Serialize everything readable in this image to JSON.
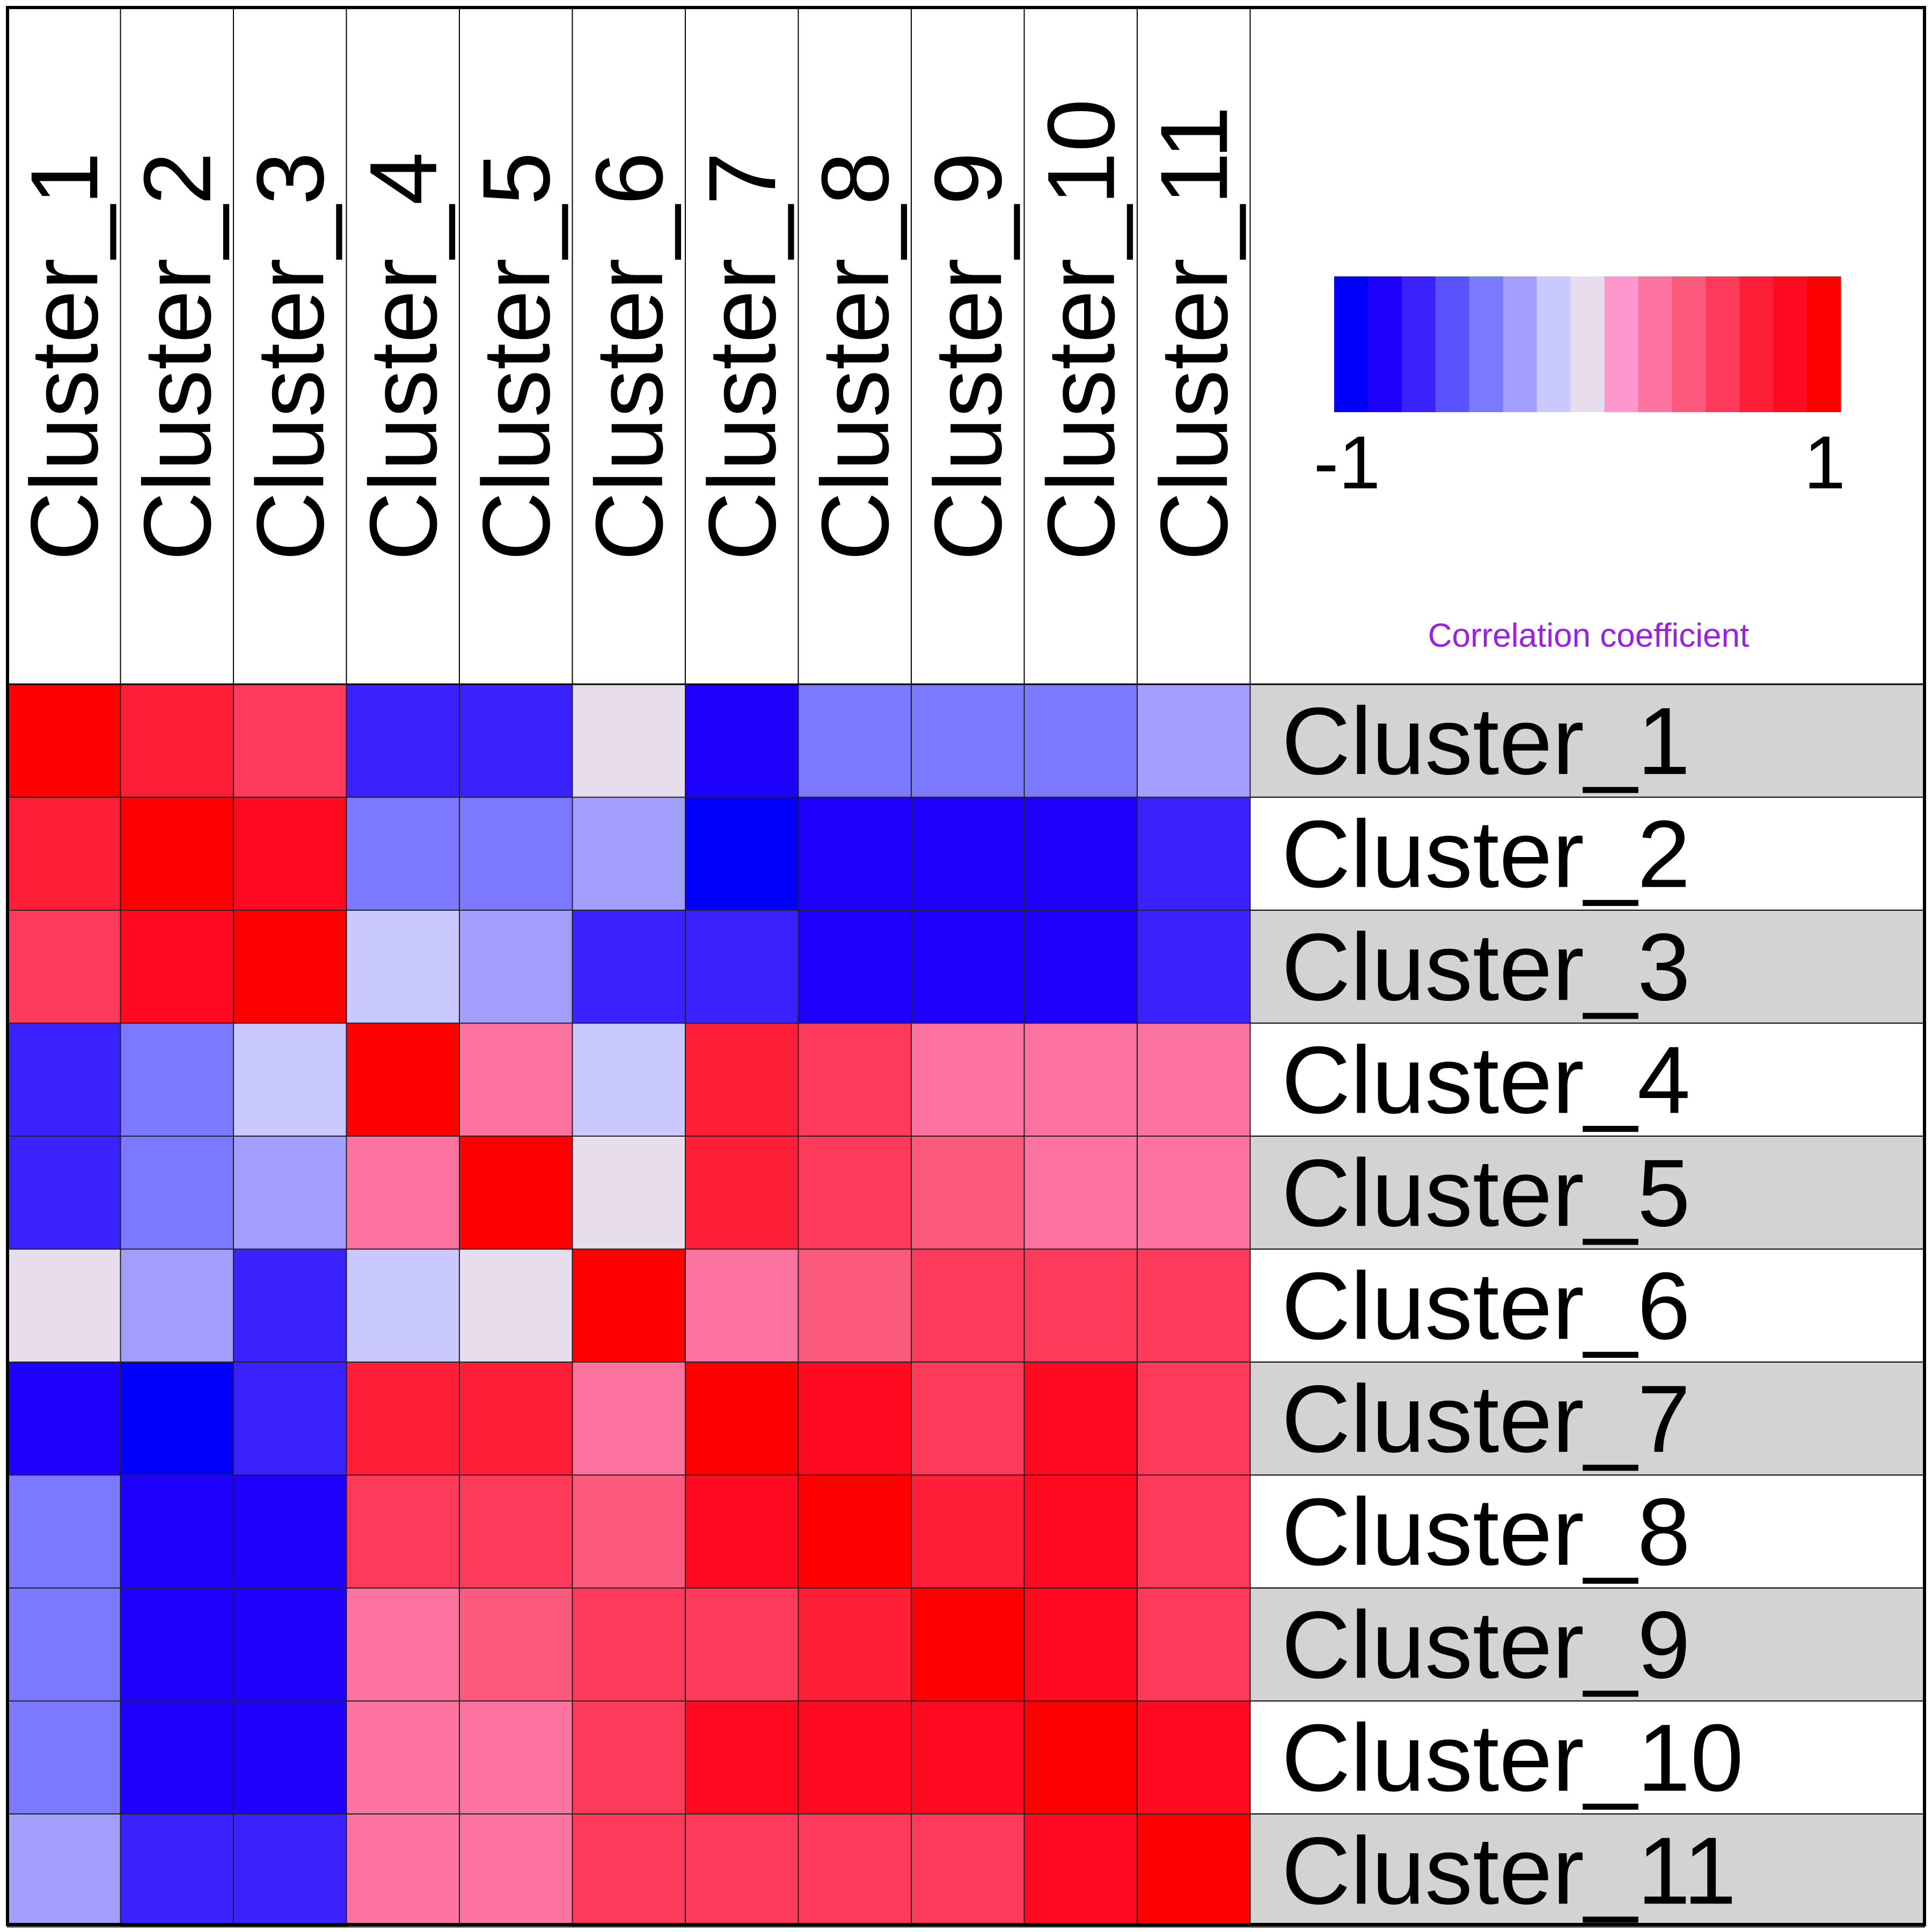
{
  "chart_data": {
    "type": "heatmap",
    "rows": [
      "Cluster_1",
      "Cluster_2",
      "Cluster_3",
      "Cluster_4",
      "Cluster_5",
      "Cluster_6",
      "Cluster_7",
      "Cluster_8",
      "Cluster_9",
      "Cluster_10",
      "Cluster_11"
    ],
    "columns": [
      "Cluster_1",
      "Cluster_2",
      "Cluster_3",
      "Cluster_4",
      "Cluster_5",
      "Cluster_6",
      "Cluster_7",
      "Cluster_8",
      "Cluster_9",
      "Cluster_10",
      "Cluster_11"
    ],
    "values": [
      [
        1.0,
        0.75,
        0.55,
        -0.65,
        -0.65,
        0.0,
        -0.8,
        -0.5,
        -0.5,
        -0.5,
        -0.35
      ],
      [
        0.75,
        1.0,
        0.9,
        -0.5,
        -0.5,
        -0.35,
        -1.0,
        -0.9,
        -0.8,
        -0.9,
        -0.65
      ],
      [
        0.55,
        0.9,
        1.0,
        -0.2,
        -0.35,
        -0.65,
        -0.65,
        -0.8,
        -0.8,
        -0.8,
        -0.65
      ],
      [
        -0.65,
        -0.5,
        -0.2,
        1.0,
        0.25,
        -0.2,
        0.75,
        0.6,
        0.25,
        0.25,
        0.25
      ],
      [
        -0.65,
        -0.5,
        -0.35,
        0.25,
        1.0,
        0.0,
        0.75,
        0.6,
        0.45,
        0.25,
        0.25
      ],
      [
        0.0,
        -0.35,
        -0.65,
        -0.2,
        0.0,
        1.0,
        0.25,
        0.45,
        0.6,
        0.6,
        0.55
      ],
      [
        -0.8,
        -1.0,
        -0.65,
        0.75,
        0.75,
        0.25,
        1.0,
        0.85,
        0.6,
        0.85,
        0.55
      ],
      [
        -0.5,
        -0.9,
        -0.8,
        0.6,
        0.55,
        0.45,
        0.85,
        1.0,
        0.75,
        0.85,
        0.55
      ],
      [
        -0.5,
        -0.8,
        -0.8,
        0.25,
        0.45,
        0.6,
        0.6,
        0.75,
        1.0,
        0.85,
        0.55
      ],
      [
        -0.5,
        -0.9,
        -0.8,
        0.25,
        0.25,
        0.6,
        0.85,
        0.85,
        0.8,
        1.0,
        0.9
      ],
      [
        -0.35,
        -0.65,
        -0.65,
        0.25,
        0.25,
        0.55,
        0.6,
        0.6,
        0.55,
        0.9,
        1.0
      ]
    ],
    "legend": {
      "title": "Correlation coefficient",
      "min_label": "-1",
      "max_label": "1",
      "min": -1,
      "max": 1,
      "placement": "top-right",
      "colors": [
        "#0000ff",
        "#1e00ff",
        "#3a22ff",
        "#5a51ff",
        "#7b79ff",
        "#a39fff",
        "#c9c8ff",
        "#e8dded",
        "#fc98cd",
        "#fb739e",
        "#fc5a7d",
        "#fd3a5a",
        "#fe1e37",
        "#ff0a20",
        "#ff0000"
      ]
    },
    "row_stripe_color": "#d3d3d3",
    "grid": true
  }
}
